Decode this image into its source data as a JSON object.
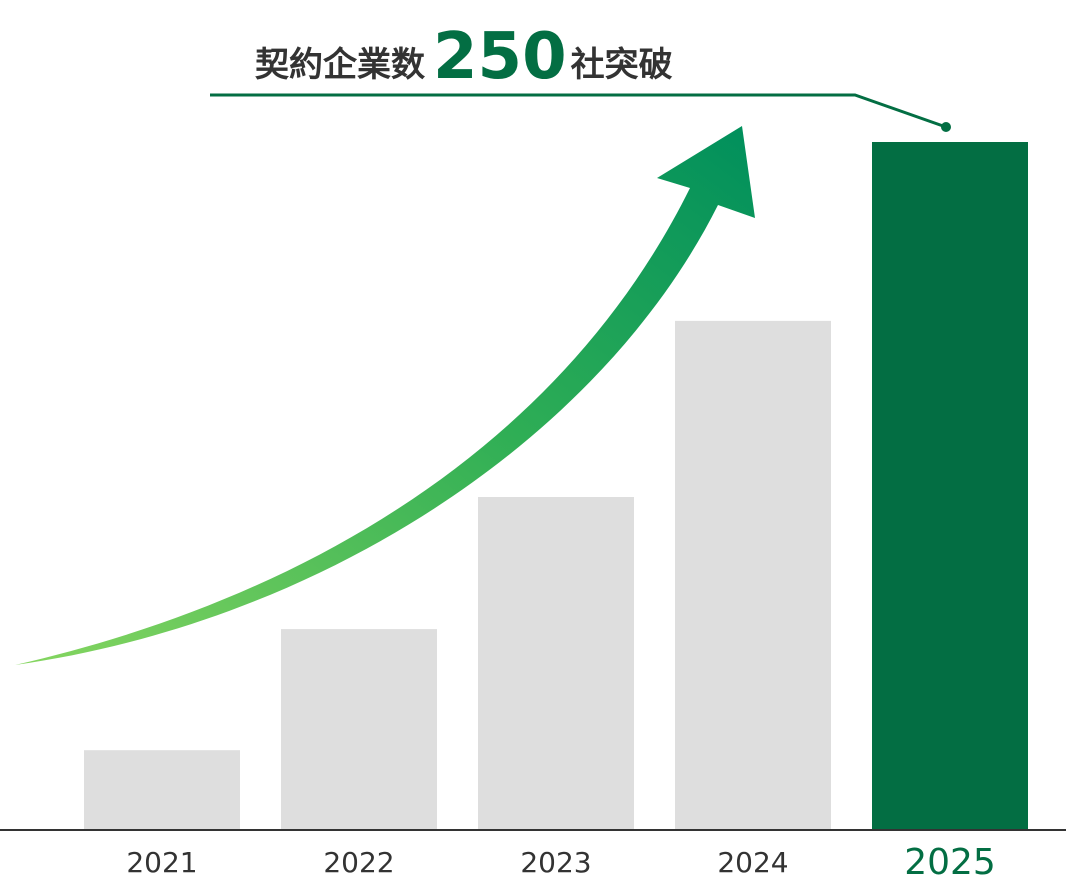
{
  "chart_data": {
    "type": "bar",
    "title": {
      "prefix": "契約企業数",
      "number": "250",
      "suffix": "社突破"
    },
    "categories": [
      "2021",
      "2022",
      "2023",
      "2024",
      "2025"
    ],
    "values": [
      29,
      73,
      121,
      185,
      250
    ],
    "colors": [
      "#dedede",
      "#dedede",
      "#dedede",
      "#dedede",
      "#036e43"
    ],
    "label_colors": [
      "#333333",
      "#333333",
      "#333333",
      "#333333",
      "#036e43"
    ],
    "ylim": [
      0,
      250
    ]
  }
}
